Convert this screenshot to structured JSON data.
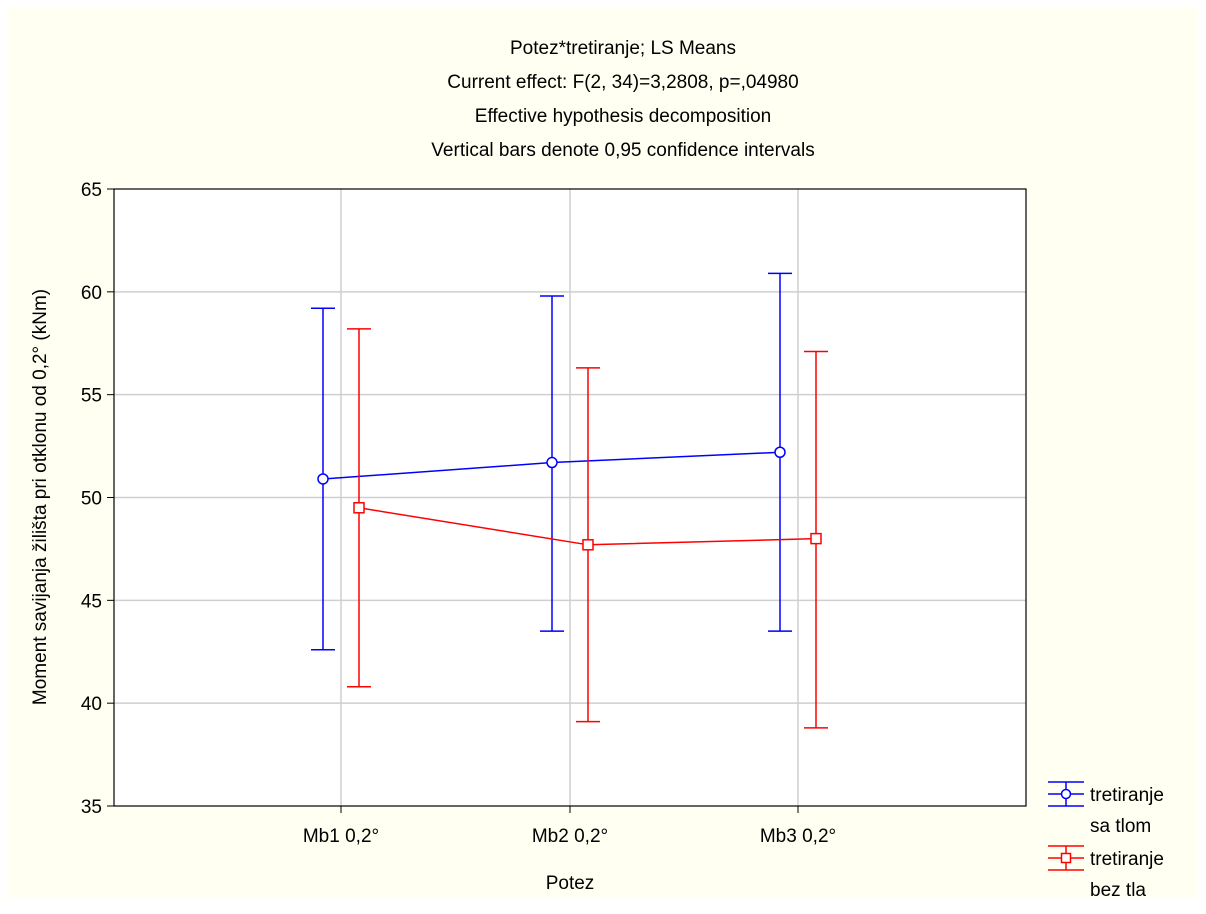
{
  "chart_data": {
    "type": "line",
    "title_lines": [
      "Potez*tretiranje; LS Means",
      "Current effect: F(2, 34)=3,2808, p=,04980",
      "Effective hypothesis decomposition",
      "Vertical bars denote 0,95 confidence intervals"
    ],
    "xlabel": "Potez",
    "ylabel": "Moment savijanja žilišta pri otklonu od 0,2° (kNm)",
    "categories": [
      "Mb1 0,2°",
      "Mb2 0,2°",
      "Mb3 0,2°"
    ],
    "ylim": [
      35,
      65
    ],
    "yticks": [
      35,
      40,
      45,
      50,
      55,
      60,
      65
    ],
    "grid": true,
    "legend_position": "bottom-right",
    "series": [
      {
        "name": "tretiranje sa tlom",
        "legend_lines": [
          "tretiranje",
          "sa tlom"
        ],
        "color": "#0000ff",
        "marker": "circle",
        "values": [
          50.9,
          51.7,
          52.2
        ],
        "lower": [
          42.6,
          43.5,
          43.5
        ],
        "upper": [
          59.2,
          59.8,
          60.9
        ]
      },
      {
        "name": "tretiranje bez tla",
        "legend_lines": [
          "tretiranje",
          "bez tla"
        ],
        "color": "#ff0000",
        "marker": "square",
        "values": [
          49.5,
          47.7,
          48.0
        ],
        "lower": [
          40.8,
          39.1,
          38.8
        ],
        "upper": [
          58.2,
          56.3,
          57.1
        ]
      }
    ]
  }
}
